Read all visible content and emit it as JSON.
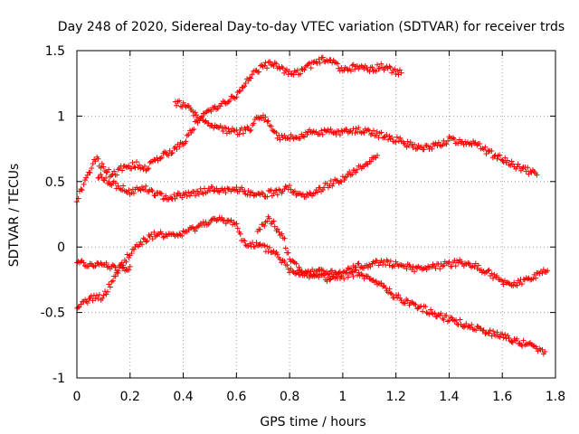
{
  "chart_data": {
    "type": "scatter",
    "title": "Day 248 of 2020, Sidereal Day-to-day VTEC variation (SDTVAR) for receiver trds",
    "xlabel": "GPS time / hours",
    "ylabel": "SDTVAR / TECUs",
    "xlim": [
      0,
      1.8
    ],
    "ylim": [
      -1,
      1.5
    ],
    "xticks": [
      0,
      0.2,
      0.4,
      0.6,
      0.8,
      1,
      1.2,
      1.4,
      1.6,
      1.8
    ],
    "xtick_labels": [
      "0",
      "0.2",
      "0.4",
      "0.6",
      "0.8",
      "1",
      "1.2",
      "1.4",
      "1.6",
      "1.8"
    ],
    "yticks": [
      -1,
      -0.5,
      0,
      0.5,
      1,
      1.5
    ],
    "ytick_labels": [
      "-1",
      "-0.5",
      "0",
      "0.5",
      "1",
      "1.5"
    ],
    "grid": true,
    "marker": "+",
    "color": "#ff0000",
    "series": [
      {
        "name": "trace-1",
        "knots": [
          [
            0,
            0.37
          ],
          [
            0.03,
            0.5
          ],
          [
            0.07,
            0.68
          ],
          [
            0.1,
            0.6
          ],
          [
            0.13,
            0.55
          ],
          [
            0.17,
            0.6
          ],
          [
            0.22,
            0.63
          ],
          [
            0.26,
            0.6
          ],
          [
            0.3,
            0.68
          ],
          [
            0.35,
            0.72
          ],
          [
            0.4,
            0.8
          ],
          [
            0.45,
            0.95
          ],
          [
            0.5,
            1.05
          ],
          [
            0.55,
            1.1
          ],
          [
            0.6,
            1.15
          ],
          [
            0.65,
            1.3
          ],
          [
            0.7,
            1.38
          ],
          [
            0.75,
            1.4
          ],
          [
            0.8,
            1.32
          ],
          [
            0.85,
            1.35
          ],
          [
            0.9,
            1.42
          ],
          [
            0.95,
            1.43
          ],
          [
            1.0,
            1.35
          ],
          [
            1.05,
            1.38
          ],
          [
            1.1,
            1.35
          ],
          [
            1.15,
            1.38
          ],
          [
            1.2,
            1.34
          ],
          [
            1.22,
            1.33
          ]
        ]
      },
      {
        "name": "trace-2",
        "knots": [
          [
            0.37,
            1.1
          ],
          [
            0.42,
            1.08
          ],
          [
            0.45,
            1.0
          ],
          [
            0.5,
            0.92
          ],
          [
            0.55,
            0.9
          ],
          [
            0.6,
            0.88
          ],
          [
            0.65,
            0.9
          ],
          [
            0.68,
            1.0
          ],
          [
            0.72,
            0.97
          ],
          [
            0.75,
            0.85
          ],
          [
            0.8,
            0.83
          ],
          [
            0.85,
            0.86
          ],
          [
            0.9,
            0.88
          ],
          [
            1.0,
            0.88
          ],
          [
            1.05,
            0.89
          ],
          [
            1.1,
            0.88
          ],
          [
            1.15,
            0.85
          ],
          [
            1.2,
            0.82
          ],
          [
            1.25,
            0.78
          ],
          [
            1.3,
            0.75
          ],
          [
            1.35,
            0.77
          ],
          [
            1.4,
            0.82
          ],
          [
            1.45,
            0.8
          ],
          [
            1.5,
            0.8
          ],
          [
            1.55,
            0.72
          ],
          [
            1.6,
            0.68
          ],
          [
            1.65,
            0.62
          ],
          [
            1.7,
            0.58
          ],
          [
            1.73,
            0.55
          ]
        ]
      },
      {
        "name": "trace-3",
        "knots": [
          [
            0.08,
            0.55
          ],
          [
            0.12,
            0.5
          ],
          [
            0.17,
            0.45
          ],
          [
            0.2,
            0.42
          ],
          [
            0.25,
            0.45
          ],
          [
            0.3,
            0.4
          ],
          [
            0.35,
            0.38
          ],
          [
            0.4,
            0.4
          ],
          [
            0.45,
            0.42
          ],
          [
            0.5,
            0.44
          ],
          [
            0.55,
            0.42
          ],
          [
            0.6,
            0.44
          ],
          [
            0.65,
            0.42
          ],
          [
            0.7,
            0.4
          ],
          [
            0.75,
            0.42
          ],
          [
            0.8,
            0.45
          ],
          [
            0.85,
            0.38
          ],
          [
            0.9,
            0.42
          ],
          [
            0.95,
            0.48
          ],
          [
            1.0,
            0.52
          ],
          [
            1.05,
            0.58
          ],
          [
            1.1,
            0.65
          ],
          [
            1.13,
            0.7
          ]
        ]
      },
      {
        "name": "trace-4",
        "knots": [
          [
            0,
            -0.45
          ],
          [
            0.05,
            -0.4
          ],
          [
            0.1,
            -0.38
          ],
          [
            0.15,
            -0.2
          ],
          [
            0.2,
            -0.05
          ],
          [
            0.25,
            0.05
          ],
          [
            0.3,
            0.1
          ],
          [
            0.35,
            0.08
          ],
          [
            0.4,
            0.1
          ],
          [
            0.45,
            0.15
          ],
          [
            0.5,
            0.2
          ],
          [
            0.55,
            0.2
          ],
          [
            0.6,
            0.18
          ],
          [
            0.62,
            0.05
          ],
          [
            0.65,
            0.02
          ],
          [
            0.7,
            0.0
          ],
          [
            0.75,
            -0.05
          ],
          [
            0.8,
            -0.18
          ],
          [
            0.85,
            -0.2
          ],
          [
            0.9,
            -0.18
          ],
          [
            0.95,
            -0.2
          ],
          [
            1.0,
            -0.22
          ],
          [
            1.05,
            -0.2
          ],
          [
            1.1,
            -0.25
          ],
          [
            1.15,
            -0.3
          ],
          [
            1.2,
            -0.38
          ],
          [
            1.3,
            -0.47
          ],
          [
            1.4,
            -0.55
          ],
          [
            1.5,
            -0.62
          ],
          [
            1.6,
            -0.68
          ],
          [
            1.7,
            -0.75
          ],
          [
            1.76,
            -0.8
          ]
        ]
      },
      {
        "name": "trace-5",
        "knots": [
          [
            0,
            -0.1
          ],
          [
            0.05,
            -0.15
          ],
          [
            0.1,
            -0.13
          ],
          [
            0.15,
            -0.17
          ],
          [
            0.2,
            -0.15
          ]
        ]
      },
      {
        "name": "trace-6",
        "knots": [
          [
            0.68,
            0.12
          ],
          [
            0.72,
            0.22
          ],
          [
            0.75,
            0.15
          ],
          [
            0.78,
            0.05
          ],
          [
            0.8,
            -0.1
          ],
          [
            0.85,
            -0.2
          ],
          [
            0.9,
            -0.22
          ],
          [
            0.95,
            -0.25
          ],
          [
            1.0,
            -0.2
          ],
          [
            1.05,
            -0.15
          ],
          [
            1.1,
            -0.13
          ],
          [
            1.15,
            -0.12
          ],
          [
            1.2,
            -0.13
          ],
          [
            1.25,
            -0.15
          ],
          [
            1.3,
            -0.18
          ],
          [
            1.35,
            -0.15
          ],
          [
            1.4,
            -0.13
          ],
          [
            1.45,
            -0.12
          ],
          [
            1.5,
            -0.15
          ],
          [
            1.55,
            -0.2
          ],
          [
            1.6,
            -0.26
          ],
          [
            1.65,
            -0.28
          ],
          [
            1.7,
            -0.24
          ],
          [
            1.75,
            -0.2
          ],
          [
            1.77,
            -0.18
          ]
        ]
      }
    ]
  }
}
